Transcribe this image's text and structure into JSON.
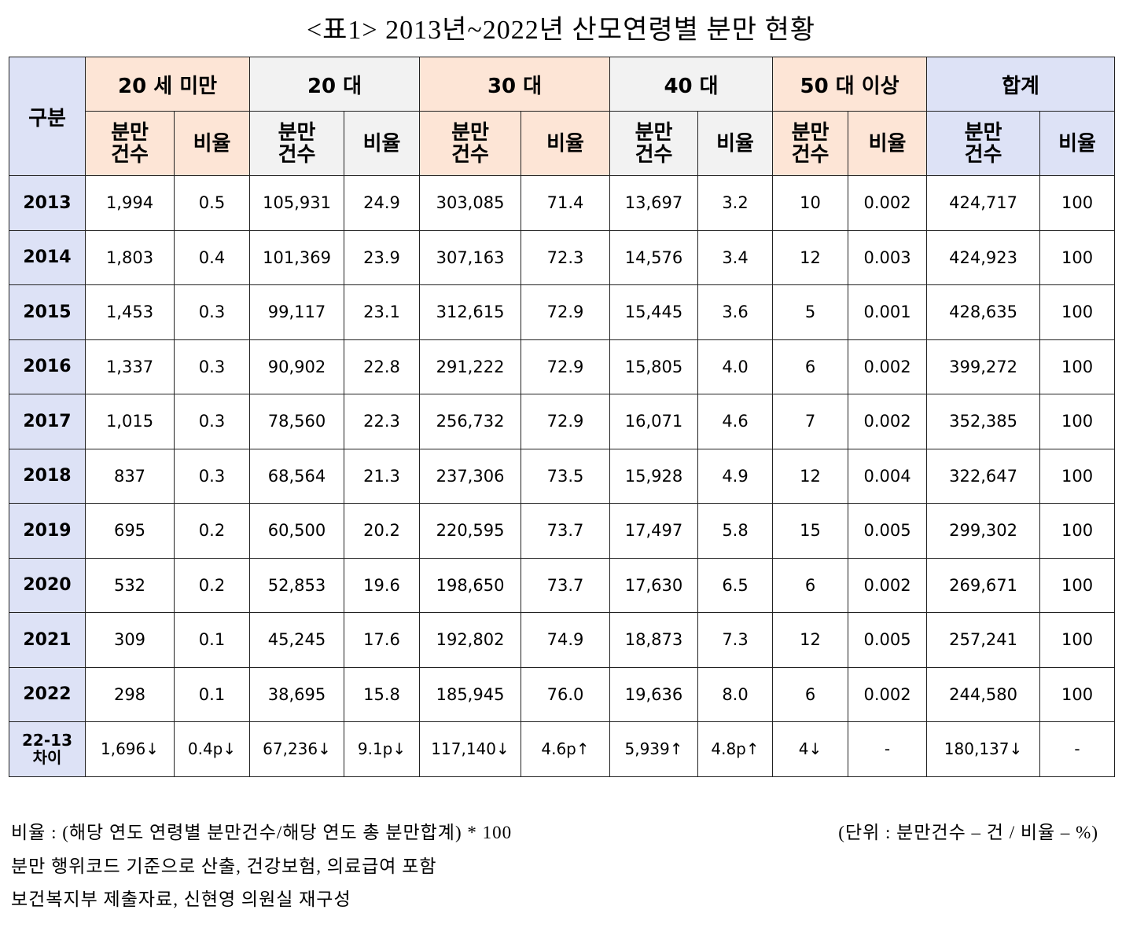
{
  "title": "<표1> 2013년~2022년 산모연령별 분만 현황",
  "table": {
    "corner": "구분",
    "groups": [
      {
        "name": "20 세 미만",
        "sub": [
          "분만 건수",
          "비율"
        ]
      },
      {
        "name": "20 대",
        "sub": [
          "분만 건수",
          "비율"
        ]
      },
      {
        "name": "30 대",
        "sub": [
          "분만 건수",
          "비율"
        ]
      },
      {
        "name": "40 대",
        "sub": [
          "분만 건수",
          "비율"
        ]
      },
      {
        "name": "50 대 이상",
        "sub": [
          "분만 건수",
          "비율"
        ]
      },
      {
        "name": "합계",
        "sub": [
          "분만 건수",
          "비율"
        ]
      }
    ],
    "rows": [
      {
        "label": "2013",
        "cells": [
          "1,994",
          "0.5",
          "105,931",
          "24.9",
          "303,085",
          "71.4",
          "13,697",
          "3.2",
          "10",
          "0.002",
          "424,717",
          "100"
        ]
      },
      {
        "label": "2014",
        "cells": [
          "1,803",
          "0.4",
          "101,369",
          "23.9",
          "307,163",
          "72.3",
          "14,576",
          "3.4",
          "12",
          "0.003",
          "424,923",
          "100"
        ]
      },
      {
        "label": "2015",
        "cells": [
          "1,453",
          "0.3",
          "99,117",
          "23.1",
          "312,615",
          "72.9",
          "15,445",
          "3.6",
          "5",
          "0.001",
          "428,635",
          "100"
        ]
      },
      {
        "label": "2016",
        "cells": [
          "1,337",
          "0.3",
          "90,902",
          "22.8",
          "291,222",
          "72.9",
          "15,805",
          "4.0",
          "6",
          "0.002",
          "399,272",
          "100"
        ]
      },
      {
        "label": "2017",
        "cells": [
          "1,015",
          "0.3",
          "78,560",
          "22.3",
          "256,732",
          "72.9",
          "16,071",
          "4.6",
          "7",
          "0.002",
          "352,385",
          "100"
        ]
      },
      {
        "label": "2018",
        "cells": [
          "837",
          "0.3",
          "68,564",
          "21.3",
          "237,306",
          "73.5",
          "15,928",
          "4.9",
          "12",
          "0.004",
          "322,647",
          "100"
        ]
      },
      {
        "label": "2019",
        "cells": [
          "695",
          "0.2",
          "60,500",
          "20.2",
          "220,595",
          "73.7",
          "17,497",
          "5.8",
          "15",
          "0.005",
          "299,302",
          "100"
        ]
      },
      {
        "label": "2020",
        "cells": [
          "532",
          "0.2",
          "52,853",
          "19.6",
          "198,650",
          "73.7",
          "17,630",
          "6.5",
          "6",
          "0.002",
          "269,671",
          "100"
        ]
      },
      {
        "label": "2021",
        "cells": [
          "309",
          "0.1",
          "45,245",
          "17.6",
          "192,802",
          "74.9",
          "18,873",
          "7.3",
          "12",
          "0.005",
          "257,241",
          "100"
        ]
      },
      {
        "label": "2022",
        "cells": [
          "298",
          "0.1",
          "38,695",
          "15.8",
          "185,945",
          "76.0",
          "19,636",
          "8.0",
          "6",
          "0.002",
          "244,580",
          "100"
        ]
      },
      {
        "label": "22-13 차이",
        "cells": [
          "1,696↓",
          "0.4p↓",
          "67,236↓",
          "9.1p↓",
          "117,140↓",
          "4.6p↑",
          "5,939↑",
          "4.8p↑",
          "4↓",
          "-",
          "180,137↓",
          "-"
        ]
      }
    ]
  },
  "notes": {
    "formula": "비율 : (해당 연도 연령별 분만건수/해당 연도 총 분만합계) * 100",
    "unit": "(단위 : 분만건수 – 건 / 비율 – %)",
    "lines": [
      "분만 행위코드 기준으로 산출, 건강보험, 의료급여 포함",
      "보건복지부 제출자료, 신현영 의원실 재구성"
    ]
  }
}
